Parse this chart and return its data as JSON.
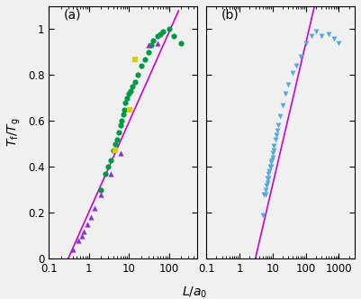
{
  "panel_a": {
    "green_circles": {
      "x": [
        2.0,
        2.5,
        3.0,
        3.5,
        4.0,
        4.5,
        5.0,
        5.5,
        6.0,
        6.5,
        7.0,
        7.5,
        8.0,
        9.0,
        10.0,
        11.0,
        12.0,
        14.0,
        16.0,
        20.0,
        25.0,
        30.0,
        35.0,
        40.0,
        50.0,
        60.0,
        70.0,
        100.0,
        130.0,
        200.0
      ],
      "y": [
        0.3,
        0.37,
        0.4,
        0.43,
        0.47,
        0.5,
        0.52,
        0.55,
        0.58,
        0.6,
        0.63,
        0.65,
        0.68,
        0.7,
        0.72,
        0.73,
        0.75,
        0.77,
        0.8,
        0.84,
        0.87,
        0.9,
        0.93,
        0.95,
        0.97,
        0.98,
        0.99,
        1.0,
        0.97,
        0.94
      ]
    },
    "purple_triangles_up": {
      "x": [
        0.4,
        0.55,
        0.65,
        0.75,
        0.9,
        1.1,
        1.4,
        2.0,
        3.5,
        6.0,
        30.0,
        50.0
      ],
      "y": [
        0.04,
        0.08,
        0.1,
        0.12,
        0.15,
        0.18,
        0.22,
        0.28,
        0.37,
        0.46,
        0.93,
        0.94
      ]
    },
    "yellow_squares": {
      "x": [
        4.5,
        10.5,
        14.0
      ],
      "y": [
        0.47,
        0.65,
        0.87
      ]
    },
    "fit_log_x1": -0.52,
    "fit_y1": 0.0,
    "fit_log_x2": 2.23,
    "fit_y2": 1.08,
    "xlim": [
      0.1,
      500
    ],
    "ylim": [
      0,
      1.1
    ],
    "label": "(a)"
  },
  "panel_b": {
    "blue_triangles_down": {
      "x": [
        5.0,
        5.5,
        6.0,
        6.0,
        6.5,
        7.0,
        7.0,
        7.5,
        7.5,
        8.0,
        8.5,
        9.0,
        9.0,
        9.5,
        10.0,
        10.0,
        10.5,
        11.0,
        12.0,
        13.0,
        14.0,
        15.0,
        17.0,
        20.0,
        25.0,
        30.0,
        40.0,
        50.0,
        70.0,
        100.0,
        150.0,
        200.0,
        300.0,
        500.0,
        700.0,
        1000.0
      ],
      "y": [
        0.19,
        0.28,
        0.28,
        0.3,
        0.32,
        0.33,
        0.35,
        0.35,
        0.37,
        0.38,
        0.4,
        0.4,
        0.42,
        0.43,
        0.44,
        0.46,
        0.47,
        0.49,
        0.52,
        0.54,
        0.56,
        0.58,
        0.62,
        0.67,
        0.72,
        0.76,
        0.81,
        0.84,
        0.88,
        0.94,
        0.97,
        0.99,
        0.97,
        0.98,
        0.96,
        0.94
      ]
    },
    "fit_log_x1": 0.48,
    "fit_y1": 0.0,
    "fit_log_x2": 2.23,
    "fit_y2": 1.08,
    "xlim": [
      0.1,
      3000
    ],
    "ylim": [
      0,
      1.1
    ],
    "label": "(b)"
  },
  "ylabel": "$T_{\\mathrm{f}}/T_{\\mathrm{g}}$",
  "xlabel": "$L/a_0$",
  "fit_color": "#cc00cc",
  "green_color": "#009944",
  "purple_color": "#8833cc",
  "yellow_color": "#ddcc00",
  "blue_color": "#55aadd",
  "bg_color": "#f0f0f0"
}
